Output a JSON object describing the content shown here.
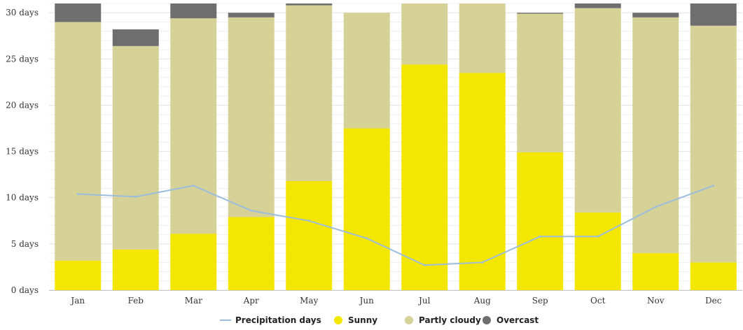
{
  "chart_data": {
    "type": "bar",
    "stacked": true,
    "categories": [
      "Jan",
      "Feb",
      "Mar",
      "Apr",
      "May",
      "Jun",
      "Jul",
      "Aug",
      "Sep",
      "Oct",
      "Nov",
      "Dec"
    ],
    "series": [
      {
        "name": "Sunny",
        "kind": "bar",
        "color": "#f3e600",
        "values": [
          3.2,
          4.4,
          6.1,
          7.9,
          11.8,
          17.5,
          24.4,
          23.5,
          14.9,
          8.4,
          4.0,
          3.0
        ]
      },
      {
        "name": "Partly cloudy",
        "kind": "bar",
        "color": "#d6d297",
        "values": [
          25.8,
          22.0,
          23.3,
          21.6,
          19.0,
          12.5,
          6.6,
          7.5,
          15.0,
          22.1,
          25.5,
          25.6
        ]
      },
      {
        "name": "Overcast",
        "kind": "bar",
        "color": "#6e6e6e",
        "values": [
          2.0,
          1.8,
          1.6,
          0.5,
          0.2,
          0.0,
          0.0,
          0.0,
          0.1,
          0.5,
          0.5,
          2.4
        ]
      },
      {
        "name": "Precipitation days",
        "kind": "line",
        "color": "#9dbddc",
        "values": [
          10.4,
          10.1,
          11.3,
          8.6,
          7.5,
          5.6,
          2.7,
          3.0,
          5.8,
          5.8,
          9.0,
          11.3
        ]
      }
    ],
    "yticks": [
      {
        "value": 0,
        "label": "0 days"
      },
      {
        "value": 5,
        "label": "5 days"
      },
      {
        "value": 10,
        "label": "10 days"
      },
      {
        "value": 15,
        "label": "15 days"
      },
      {
        "value": 20,
        "label": "20 days"
      },
      {
        "value": 25,
        "label": "25 days"
      },
      {
        "value": 30,
        "label": "30 days"
      }
    ],
    "ylim": [
      0,
      31
    ],
    "grid": true,
    "legend_position": "bottom-center",
    "legend": [
      "Precipitation days",
      "Sunny",
      "Partly cloudy",
      "Overcast"
    ]
  }
}
